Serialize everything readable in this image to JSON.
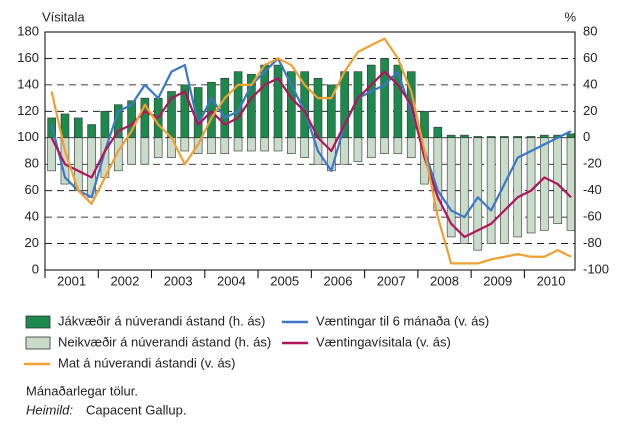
{
  "chart_data": {
    "type": "combo",
    "y_label": "Vísitala",
    "y2_label": "%",
    "x": [
      2001.125,
      2001.375,
      2001.625,
      2001.875,
      2002.125,
      2002.375,
      2002.625,
      2002.875,
      2003.125,
      2003.375,
      2003.625,
      2003.875,
      2004.125,
      2004.375,
      2004.625,
      2004.875,
      2005.125,
      2005.375,
      2005.625,
      2005.875,
      2006.125,
      2006.375,
      2006.625,
      2006.875,
      2007.125,
      2007.375,
      2007.625,
      2007.875,
      2008.125,
      2008.375,
      2008.625,
      2008.875,
      2009.125,
      2009.375,
      2009.625,
      2009.875,
      2010.125,
      2010.375,
      2010.625,
      2010.875
    ],
    "xlim": [
      2001,
      2010.95
    ],
    "xticks": [
      {
        "value": 2001.5,
        "label": "2001"
      },
      {
        "value": 2002.5,
        "label": "2002"
      },
      {
        "value": 2003.5,
        "label": "2003"
      },
      {
        "value": 2004.5,
        "label": "2004"
      },
      {
        "value": 2005.5,
        "label": "2005"
      },
      {
        "value": 2006.5,
        "label": "2006"
      },
      {
        "value": 2007.5,
        "label": "2007"
      },
      {
        "value": 2008.5,
        "label": "2008"
      },
      {
        "value": 2009.5,
        "label": "2009"
      },
      {
        "value": 2010.5,
        "label": "2010"
      }
    ],
    "ylim": [
      0,
      180
    ],
    "yticks": [
      0,
      20,
      40,
      60,
      80,
      100,
      120,
      140,
      160,
      180
    ],
    "y2lim": [
      -100,
      80
    ],
    "y2ticks": [
      -100,
      -80,
      -60,
      -40,
      -20,
      0,
      20,
      40,
      60,
      80
    ],
    "grid": true,
    "series": [
      {
        "name": "Jákvæðir á núverandi ástand (h. ás)",
        "type": "bar",
        "axis": "y2",
        "color": "#1b8a4c",
        "values": [
          15,
          18,
          15,
          10,
          20,
          25,
          28,
          30,
          30,
          35,
          40,
          38,
          42,
          45,
          50,
          48,
          55,
          55,
          50,
          50,
          45,
          40,
          50,
          50,
          55,
          60,
          55,
          50,
          20,
          8,
          2,
          2,
          1,
          1,
          1,
          1,
          1,
          2,
          2,
          3
        ]
      },
      {
        "name": "Neikvæðir á núverandi ástand (h. ás)",
        "type": "bar",
        "axis": "y2",
        "color": "#c9dcc9",
        "values": [
          -25,
          -35,
          -40,
          -45,
          -30,
          -25,
          -20,
          -20,
          -15,
          -15,
          -10,
          -12,
          -12,
          -12,
          -10,
          -10,
          -10,
          -10,
          -12,
          -15,
          -20,
          -25,
          -20,
          -18,
          -15,
          -12,
          -12,
          -15,
          -35,
          -55,
          -75,
          -80,
          -85,
          -80,
          -80,
          -75,
          -72,
          -70,
          -65,
          -70
        ]
      },
      {
        "name": "Væntingar til 6 mánaða (v. ás)",
        "type": "line",
        "color": "#3a78c8",
        "values": [
          110,
          70,
          60,
          55,
          90,
          120,
          125,
          140,
          130,
          150,
          155,
          110,
          130,
          115,
          120,
          140,
          150,
          160,
          140,
          120,
          90,
          75,
          110,
          130,
          135,
          140,
          150,
          120,
          90,
          60,
          45,
          40,
          55,
          45,
          65,
          85,
          90,
          95,
          100,
          105
        ]
      },
      {
        "name": "Væntingavísitala (v. ás)",
        "type": "line",
        "color": "#b0145a",
        "values": [
          100,
          80,
          75,
          70,
          90,
          105,
          110,
          120,
          115,
          130,
          135,
          110,
          120,
          110,
          115,
          130,
          140,
          145,
          130,
          120,
          100,
          90,
          110,
          130,
          140,
          150,
          140,
          125,
          85,
          55,
          35,
          25,
          30,
          35,
          45,
          55,
          60,
          70,
          65,
          55
        ]
      },
      {
        "name": "Mat á núverandi ástandi (v. ás)",
        "type": "line",
        "color": "#f0a030",
        "values": [
          135,
          90,
          60,
          50,
          70,
          90,
          105,
          125,
          110,
          100,
          80,
          95,
          115,
          130,
          140,
          140,
          155,
          160,
          155,
          140,
          130,
          130,
          150,
          165,
          170,
          175,
          160,
          135,
          90,
          40,
          5,
          5,
          5,
          8,
          10,
          12,
          10,
          10,
          15,
          10
        ]
      }
    ],
    "notes": "Mánaðarlegar tölur.",
    "source_label": "Heimild:",
    "source": "Capacent Gallup."
  }
}
